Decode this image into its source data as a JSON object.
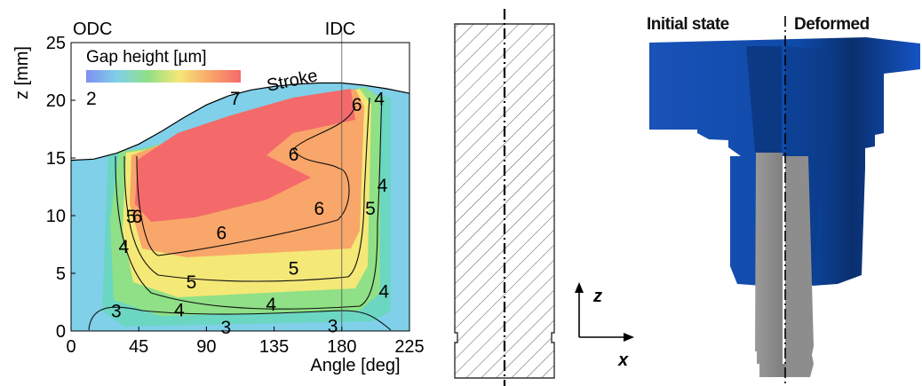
{
  "chart_data": {
    "type": "heatmap",
    "xlabel": "Angle [deg]",
    "ylabel": "z [mm]",
    "xlim": [
      0,
      225
    ],
    "ylim": [
      0,
      25
    ],
    "xticks": [
      "0",
      "45",
      "90",
      "135",
      "180",
      "225"
    ],
    "yticks": [
      "0",
      "5",
      "10",
      "15",
      "20",
      "25"
    ],
    "top_labels": {
      "left": "ODC",
      "right": "IDC"
    },
    "vline_x": 180,
    "colorbar": {
      "title": "Gap height [µm]",
      "min": "2",
      "max": "7"
    },
    "stroke_label": "Stroke",
    "stroke_curve": {
      "x": [
        0,
        15,
        30,
        45,
        60,
        75,
        90,
        105,
        120,
        135,
        150,
        165,
        180,
        195,
        210,
        225
      ],
      "z": [
        14.8,
        14.9,
        15.4,
        16.2,
        17.3,
        18.5,
        19.6,
        20.4,
        20.9,
        21.2,
        21.4,
        21.5,
        21.5,
        21.3,
        21.0,
        20.6
      ]
    },
    "contour_labels": [
      {
        "text": "6",
        "x": 190,
        "z": 19.5
      },
      {
        "text": "4",
        "x": 205,
        "z": 20.0
      },
      {
        "text": "6",
        "x": 148,
        "z": 15.2
      },
      {
        "text": "4",
        "x": 207,
        "z": 12.5
      },
      {
        "text": "6",
        "x": 165,
        "z": 10.5
      },
      {
        "text": "5",
        "x": 199,
        "z": 10.5
      },
      {
        "text": "5",
        "x": 40,
        "z": 9.8
      },
      {
        "text": "6",
        "x": 44,
        "z": 9.8
      },
      {
        "text": "6",
        "x": 100,
        "z": 8.4
      },
      {
        "text": "4",
        "x": 35,
        "z": 7.2
      },
      {
        "text": "5",
        "x": 148,
        "z": 5.3
      },
      {
        "text": "5",
        "x": 80,
        "z": 4.1
      },
      {
        "text": "4",
        "x": 208,
        "z": 3.3
      },
      {
        "text": "4",
        "x": 72,
        "z": 1.7
      },
      {
        "text": "4",
        "x": 133,
        "z": 2.2
      },
      {
        "text": "3",
        "x": 30,
        "z": 1.6
      },
      {
        "text": "3",
        "x": 103,
        "z": 0.2
      },
      {
        "text": "3",
        "x": 174,
        "z": 0.3
      }
    ]
  },
  "axes_diagram": {
    "z_label": "z",
    "x_label": "x"
  },
  "deformation": {
    "initial_label": "Initial state",
    "deformed_label": "Deformed"
  },
  "colors": {
    "heat_high": "#f46a6a",
    "heat_orange": "#f9a66a",
    "heat_yellow": "#f4e877",
    "heat_green": "#8fe086",
    "heat_teal": "#6bd6c2",
    "heat_low": "#7fd0e8",
    "bushing_blue": "#0c4dae",
    "piston_gray": "#8a8a8a"
  }
}
